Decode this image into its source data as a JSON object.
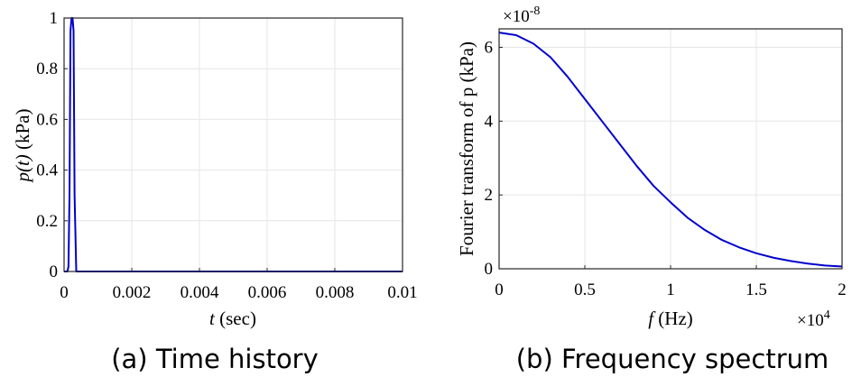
{
  "chart_data": [
    {
      "type": "line",
      "caption": "(a) Time history",
      "xlabel_var": "t",
      "xlabel_unit": " (sec)",
      "ylabel_var": "p(t)",
      "ylabel_unit": "  (kPa)",
      "xlim": [
        0,
        0.01
      ],
      "ylim": [
        0,
        1
      ],
      "x_ticks": [
        0,
        0.002,
        0.004,
        0.006,
        0.008,
        0.01
      ],
      "x_tick_labels": [
        "0",
        "0.002",
        "0.004",
        "0.006",
        "0.008",
        "0.01"
      ],
      "y_ticks": [
        0,
        0.2,
        0.4,
        0.6,
        0.8,
        1
      ],
      "y_tick_labels": [
        "0",
        "0.2",
        "0.4",
        "0.6",
        "0.8",
        "1"
      ],
      "grid": true,
      "line_color": "#0000cc",
      "series": [
        {
          "x": [
            0,
            5e-05,
            0.0001,
            0.00013,
            0.00016,
            0.00019,
            0.00022,
            0.00025,
            0.00028,
            0.00031,
            0.00036,
            0.01
          ],
          "y": [
            0,
            0,
            0,
            0.02,
            0.3,
            0.95,
            1.0,
            1.0,
            0.95,
            0.3,
            0,
            0
          ]
        }
      ]
    },
    {
      "type": "line",
      "caption": "(b) Frequency spectrum",
      "xlabel_var": "f",
      "xlabel_unit": "  (Hz)",
      "ylabel": "Fourier transform of p (kPa)",
      "x_multiplier": "×10",
      "x_multiplier_exp": "4",
      "y_multiplier": "×10",
      "y_multiplier_exp": "-8",
      "xlim": [
        0,
        2
      ],
      "ylim": [
        0,
        6.5
      ],
      "x_ticks": [
        0,
        0.5,
        1,
        1.5,
        2
      ],
      "x_tick_labels": [
        "0",
        "0.5",
        "1",
        "1.5",
        "2"
      ],
      "y_ticks": [
        0,
        2,
        4,
        6
      ],
      "y_tick_labels": [
        "0",
        "2",
        "4",
        "6"
      ],
      "grid": true,
      "line_color": "#0000cc",
      "series": [
        {
          "x": [
            0,
            0.1,
            0.2,
            0.3,
            0.4,
            0.5,
            0.6,
            0.7,
            0.8,
            0.9,
            1.0,
            1.1,
            1.2,
            1.3,
            1.4,
            1.5,
            1.6,
            1.7,
            1.8,
            1.9,
            2.0
          ],
          "y": [
            6.4,
            6.33,
            6.1,
            5.73,
            5.2,
            4.6,
            4.0,
            3.4,
            2.8,
            2.25,
            1.8,
            1.38,
            1.05,
            0.78,
            0.58,
            0.42,
            0.3,
            0.21,
            0.14,
            0.09,
            0.06
          ]
        }
      ]
    }
  ]
}
